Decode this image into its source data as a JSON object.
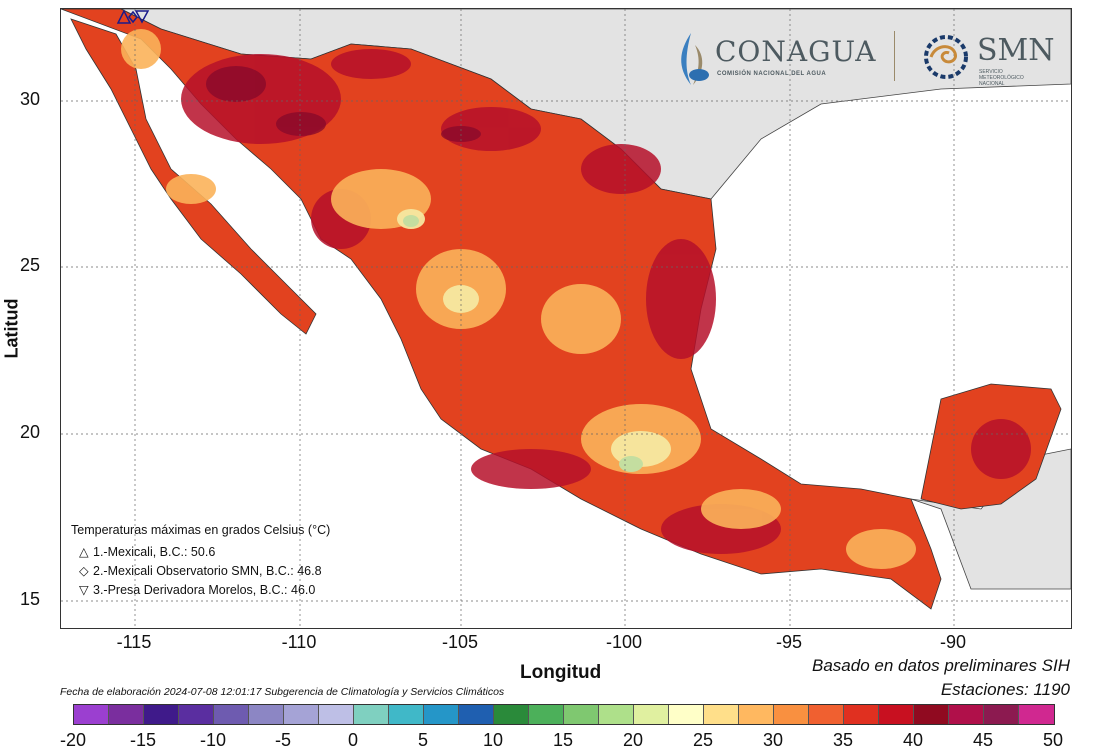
{
  "axes": {
    "xlabel": "Longitud",
    "ylabel": "Latitud",
    "xticks": [
      "-115",
      "-110",
      "-105",
      "-100",
      "-95",
      "-90"
    ],
    "yticks": [
      "30",
      "25",
      "20",
      "15"
    ]
  },
  "logos": {
    "conagua": "CONAGUA",
    "conagua_sub": "COMISIÓN NACIONAL DEL AGUA",
    "smn": "SMN",
    "smn_sub1": "SERVICIO",
    "smn_sub2": "METEOROLÓGICO",
    "smn_sub3": "NACIONAL"
  },
  "legend": {
    "title": "Temperaturas máximas en grados Celsius (°C)",
    "items": [
      {
        "symbol": "△",
        "text": "1.-Mexicali, B.C.: 50.6"
      },
      {
        "symbol": "◇",
        "text": "2.-Mexicali Observatorio SMN, B.C.: 46.8"
      },
      {
        "symbol": "▽",
        "text": "3.-Presa Derivadora Morelos, B.C.: 46.0"
      }
    ]
  },
  "footer": {
    "basado": "Basado en datos preliminares SIH",
    "estaciones": "Estaciones:  1190",
    "fecha": "Fecha de elaboración 2024-07-08 12:01:17 Subgerencia de Climatología y Servicios Climáticos"
  },
  "colorbar": {
    "labels": [
      "-20",
      "-15",
      "-10",
      "-5",
      "0",
      "5",
      "10",
      "15",
      "20",
      "25",
      "30",
      "35",
      "40",
      "45",
      "50"
    ],
    "colors": [
      "#9b3fd0",
      "#7a2e9e",
      "#3f1a8a",
      "#5a2ea0",
      "#6e5bb0",
      "#8c86c4",
      "#a5a3d6",
      "#bebfe6",
      "#7fd0c0",
      "#40b8c8",
      "#2596c8",
      "#1f5fb0",
      "#2a8a3a",
      "#4cb05a",
      "#7fc870",
      "#aee08a",
      "#e0f0a0",
      "#ffffc8",
      "#ffdf8a",
      "#ffb860",
      "#f99040",
      "#f06030",
      "#e03020",
      "#c81020",
      "#900a20",
      "#b0104a",
      "#8c1a50",
      "#d02890"
    ]
  },
  "map": {
    "ocean_color": "#ffffff",
    "land_color": "#e3e3e3",
    "heat_base": "#e2421f",
    "heat_hot": "#b6102a",
    "heat_mild": "#fbb25a",
    "heat_cool": "#f6e7a0",
    "heat_green": "#c4dea0"
  }
}
